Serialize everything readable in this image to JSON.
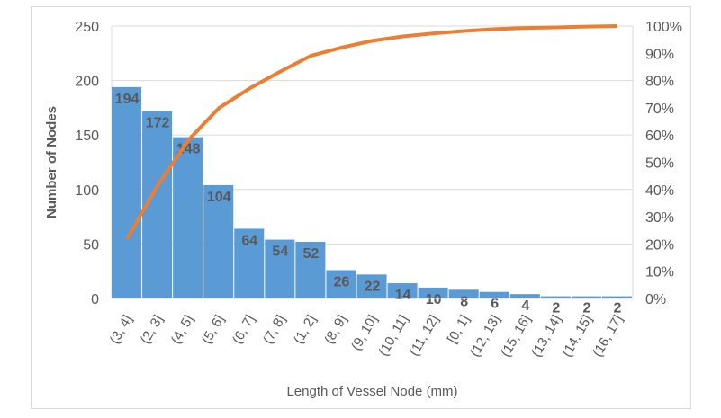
{
  "chart_data": {
    "type": "bar+line",
    "categories": [
      "(3, 4]",
      "(2, 3]",
      "(4, 5]",
      "(5, 6]",
      "(6, 7]",
      "(7, 8]",
      "(1, 2]",
      "(8, 9]",
      "(9, 10]",
      "(10, 11]",
      "(11, 12]",
      "[0, 1]",
      "(12, 13]",
      "(15, 16]",
      "(13, 14]",
      "(14, 15]",
      "(16, 17]"
    ],
    "series": [
      {
        "type": "bar",
        "values": [
          194,
          172,
          148,
          104,
          64,
          54,
          52,
          26,
          22,
          14,
          10,
          8,
          6,
          4,
          2,
          2,
          2
        ],
        "color": "#5b9bd5"
      },
      {
        "type": "line",
        "axis": "right",
        "values": [
          21.9,
          41.4,
          58.1,
          69.9,
          77.1,
          83.3,
          89.1,
          92.1,
          94.6,
          96.2,
          97.3,
          98.2,
          98.9,
          99.3,
          99.5,
          99.8,
          100
        ],
        "color": "#ed7d31"
      }
    ],
    "xlabel": "Length of Vessel Node (mm)",
    "ylabel": "Number of Nodes",
    "ylim": [
      0,
      250
    ],
    "yticks": [
      "0",
      "50",
      "100",
      "150",
      "200",
      "250"
    ],
    "y2lim": [
      0,
      100
    ],
    "y2ticks": [
      "0%",
      "10%",
      "20%",
      "30%",
      "40%",
      "50%",
      "60%",
      "70%",
      "80%",
      "90%",
      "100%"
    ],
    "grid": true,
    "data_labels": true
  }
}
